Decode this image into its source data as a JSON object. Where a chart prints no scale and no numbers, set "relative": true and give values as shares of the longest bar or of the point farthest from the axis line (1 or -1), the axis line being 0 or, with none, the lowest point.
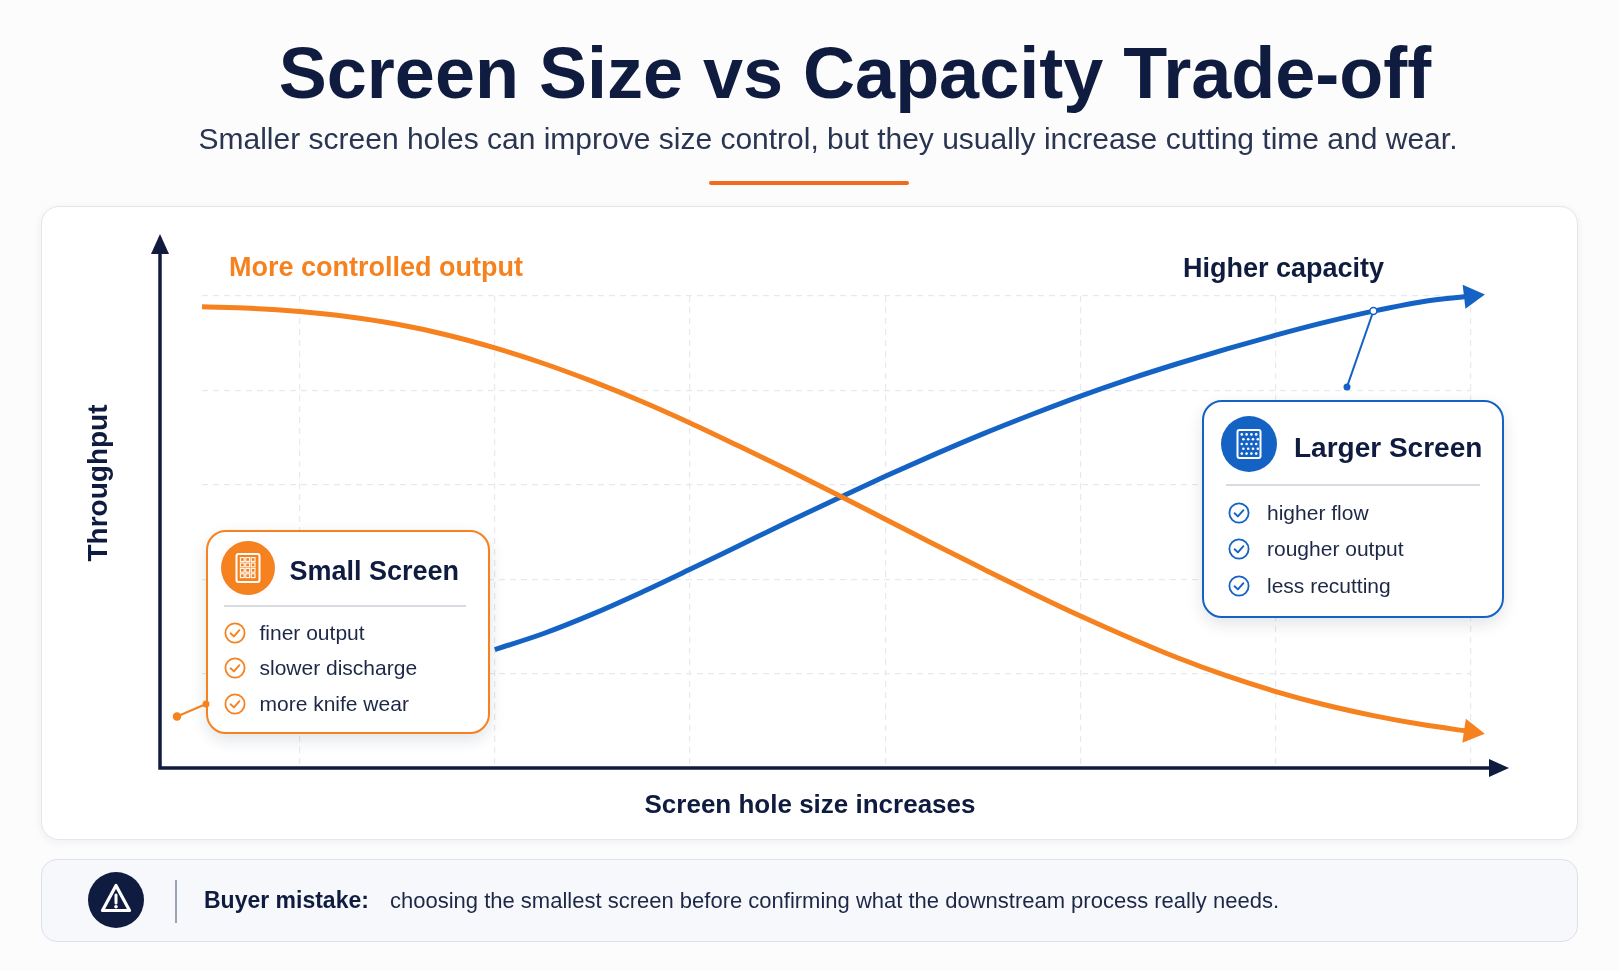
{
  "chart_data": {
    "type": "line",
    "title": "Screen Size vs Capacity Trade-off",
    "subtitle": "Smaller screen holes can improve size control, but they usually increase cutting time and wear.",
    "xlabel": "Screen hole size increases",
    "ylabel": "Throughput",
    "relative": true,
    "categories": [
      null,
      null,
      null,
      null,
      null,
      null,
      null,
      null,
      null,
      null,
      null,
      null,
      null,
      null,
      null,
      null,
      null,
      null,
      null,
      null,
      null,
      null,
      null,
      null,
      null,
      null,
      null
    ],
    "series": [
      {
        "name": "More controlled output",
        "color": "#f5821f",
        "values": [
          0.977,
          0.974,
          0.967,
          0.956,
          0.94,
          0.918,
          0.89,
          0.857,
          0.819,
          0.777,
          0.731,
          0.682,
          0.632,
          0.58,
          0.527,
          0.474,
          0.422,
          0.371,
          0.322,
          0.276,
          0.233,
          0.195,
          0.162,
          0.134,
          0.111,
          0.092,
          0.077
        ]
      },
      {
        "name": "Higher capacity",
        "color": "#1463c4",
        "values": [
          null,
          null,
          null,
          null,
          null,
          null,
          0.251,
          0.285,
          0.326,
          0.372,
          0.421,
          0.471,
          0.521,
          0.57,
          0.618,
          0.664,
          0.708,
          0.749,
          0.788,
          0.824,
          0.857,
          0.888,
          0.917,
          0.944,
          0.968,
          0.988,
          1.0
        ]
      }
    ],
    "grid": true,
    "line_style": "solid",
    "annotations": [
      "Small Screen",
      "finer output",
      "slower discharge",
      "more knife wear",
      "Larger Screen",
      "higher flow",
      "rougher output",
      "less recutting",
      "Buyer mistake:",
      "choosing the smallest screen before confirming what the downstream process really needs."
    ]
  }
}
